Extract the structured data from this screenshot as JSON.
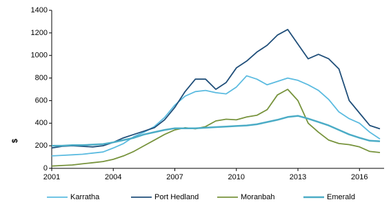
{
  "chart_data": {
    "type": "line",
    "y_label": "$",
    "x": [
      2001,
      2001.5,
      2002,
      2002.5,
      2003,
      2003.5,
      2004,
      2004.5,
      2005,
      2005.5,
      2006,
      2006.5,
      2007,
      2007.5,
      2008,
      2008.5,
      2009,
      2009.5,
      2010,
      2010.5,
      2011,
      2011.5,
      2012,
      2012.5,
      2013,
      2013.5,
      2014,
      2014.5,
      2015,
      2015.5,
      2016,
      2016.5,
      2017
    ],
    "series": [
      {
        "name": "Karratha",
        "color": "#5bbbe0",
        "values": [
          110,
          115,
          120,
          125,
          135,
          145,
          180,
          220,
          280,
          320,
          370,
          450,
          560,
          640,
          680,
          690,
          670,
          660,
          720,
          820,
          790,
          740,
          770,
          800,
          780,
          740,
          690,
          610,
          500,
          440,
          400,
          320,
          260
        ]
      },
      {
        "name": "Port Hedland",
        "color": "#1f4e79",
        "values": [
          180,
          195,
          200,
          195,
          190,
          200,
          230,
          270,
          300,
          330,
          360,
          430,
          540,
          680,
          790,
          790,
          700,
          760,
          890,
          950,
          1030,
          1090,
          1180,
          1230,
          1100,
          970,
          1010,
          970,
          880,
          600,
          490,
          380,
          350
        ]
      },
      {
        "name": "Moranbah",
        "color": "#77933c",
        "values": [
          20,
          25,
          30,
          40,
          50,
          60,
          80,
          110,
          150,
          200,
          250,
          300,
          340,
          360,
          350,
          370,
          420,
          435,
          430,
          455,
          470,
          520,
          650,
          700,
          600,
          400,
          320,
          250,
          220,
          210,
          190,
          150,
          140
        ]
      },
      {
        "name": "Emerald",
        "color": "#4bacc6",
        "values": [
          200,
          200,
          205,
          205,
          210,
          215,
          230,
          250,
          270,
          300,
          320,
          340,
          355,
          355,
          355,
          360,
          365,
          370,
          375,
          380,
          390,
          410,
          430,
          455,
          465,
          440,
          410,
          380,
          340,
          300,
          270,
          245,
          240
        ]
      }
    ],
    "xlim": [
      2001,
      2017.2
    ],
    "ylim": [
      0,
      1400
    ],
    "xticks": [
      2001,
      2004,
      2007,
      2010,
      2013,
      2016
    ],
    "yticks": [
      0,
      200,
      400,
      600,
      800,
      1000,
      1200,
      1400
    ]
  }
}
